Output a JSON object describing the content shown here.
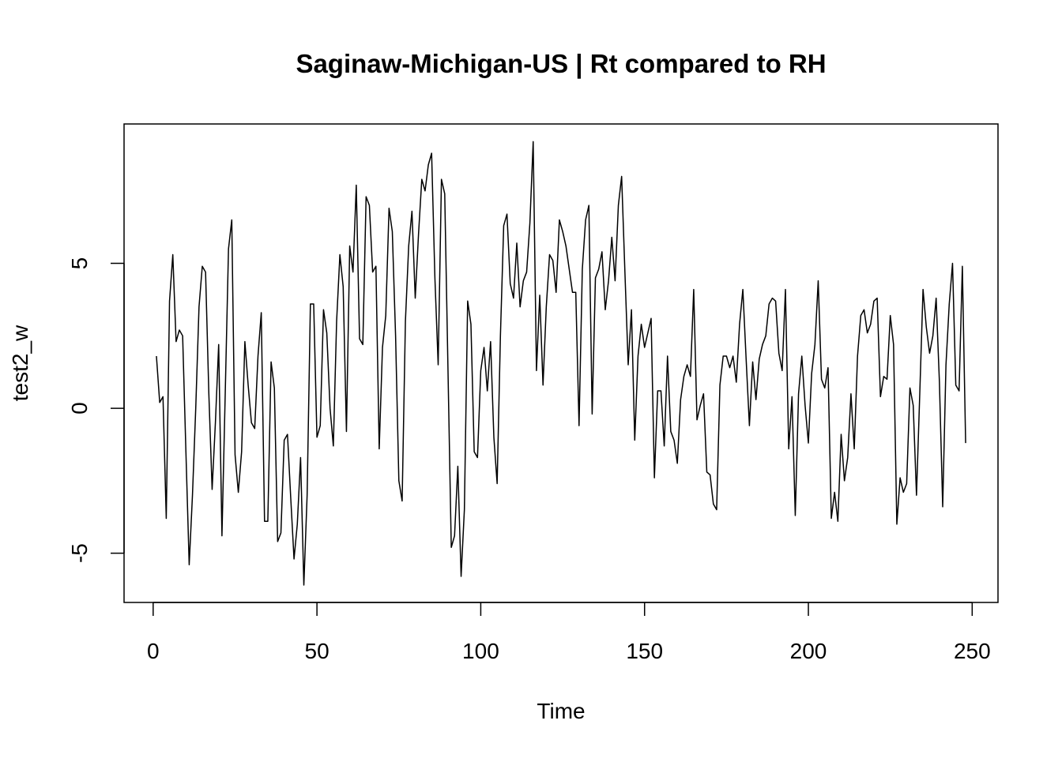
{
  "chart_data": {
    "type": "line",
    "title": "Saginaw-Michigan-US | Rt compared to RH",
    "x_label": "Time",
    "y_label": "test2_w",
    "x": [
      1,
      2,
      3,
      4,
      5,
      6,
      7,
      8,
      9,
      10,
      11,
      12,
      13,
      14,
      15,
      16,
      17,
      18,
      19,
      20,
      21,
      22,
      23,
      24,
      25,
      26,
      27,
      28,
      29,
      30,
      31,
      32,
      33,
      34,
      35,
      36,
      37,
      38,
      39,
      40,
      41,
      42,
      43,
      44,
      45,
      46,
      47,
      48,
      49,
      50,
      51,
      52,
      53,
      54,
      55,
      56,
      57,
      58,
      59,
      60,
      61,
      62,
      63,
      64,
      65,
      66,
      67,
      68,
      69,
      70,
      71,
      72,
      73,
      74,
      75,
      76,
      77,
      78,
      79,
      80,
      81,
      82,
      83,
      84,
      85,
      86,
      87,
      88,
      89,
      90,
      91,
      92,
      93,
      94,
      95,
      96,
      97,
      98,
      99,
      100,
      101,
      102,
      103,
      104,
      105,
      106,
      107,
      108,
      109,
      110,
      111,
      112,
      113,
      114,
      115,
      116,
      117,
      118,
      119,
      120,
      121,
      122,
      123,
      124,
      125,
      126,
      127,
      128,
      129,
      130,
      131,
      132,
      133,
      134,
      135,
      136,
      137,
      138,
      139,
      140,
      141,
      142,
      143,
      144,
      145,
      146,
      147,
      148,
      149,
      150,
      151,
      152,
      153,
      154,
      155,
      156,
      157,
      158,
      159,
      160,
      161,
      162,
      163,
      164,
      165,
      166,
      167,
      168,
      169,
      170,
      171,
      172,
      173,
      174,
      175,
      176,
      177,
      178,
      179,
      180,
      181,
      182,
      183,
      184,
      185,
      186,
      187,
      188,
      189,
      190,
      191,
      192,
      193,
      194,
      195,
      196,
      197,
      198,
      199,
      200,
      201,
      202,
      203,
      204,
      205,
      206,
      207,
      208,
      209,
      210,
      211,
      212,
      213,
      214,
      215,
      216,
      217,
      218,
      219,
      220,
      221,
      222,
      223,
      224,
      225,
      226,
      227,
      228,
      229,
      230,
      231,
      232,
      233,
      234,
      235,
      236,
      237,
      238,
      239,
      240,
      241,
      242,
      243,
      244,
      245,
      246,
      247,
      248
    ],
    "series": [
      {
        "name": "test2_w",
        "color": "#000000",
        "values": [
          1.8,
          0.2,
          0.4,
          -3.8,
          3.7,
          5.3,
          2.3,
          2.7,
          2.5,
          -1.5,
          -5.4,
          -3,
          0,
          3.5,
          4.9,
          4.7,
          0.5,
          -2.8,
          -0.5,
          2.2,
          -4.4,
          0.5,
          5.5,
          6.5,
          -1.6,
          -2.9,
          -1.5,
          2.3,
          0.8,
          -0.5,
          -0.7,
          1.8,
          3.3,
          -3.9,
          -3.9,
          1.6,
          0.7,
          -4.6,
          -4.3,
          -1.1,
          -0.9,
          -3.1,
          -5.2,
          -4,
          -1.7,
          -6.1,
          -3,
          3.6,
          3.6,
          -1,
          -0.6,
          3.4,
          2.6,
          0,
          -1.3,
          3,
          5.3,
          4.2,
          -0.8,
          5.6,
          4.7,
          7.7,
          2.4,
          2.2,
          7.3,
          7,
          4.7,
          4.9,
          -1.4,
          2.1,
          3.2,
          6.9,
          6.1,
          2.5,
          -2.5,
          -3.2,
          3,
          5.6,
          6.8,
          3.8,
          6,
          7.9,
          7.5,
          8.4,
          8.8,
          4.5,
          1.5,
          7.9,
          7.4,
          1.3,
          -4.8,
          -4.4,
          -2,
          -5.8,
          -3.5,
          3.7,
          2.9,
          -1.5,
          -1.7,
          1.3,
          2.1,
          0.6,
          2.3,
          -1,
          -2.6,
          2.5,
          6.3,
          6.7,
          4.3,
          3.8,
          5.7,
          3.5,
          4.4,
          4.7,
          6.4,
          9.2,
          1.3,
          3.9,
          0.8,
          3.5,
          5.3,
          5.1,
          4,
          6.5,
          6.1,
          5.6,
          4.8,
          4,
          4,
          -0.6,
          4.8,
          6.5,
          7,
          -0.2,
          4.5,
          4.8,
          5.4,
          3.4,
          4.4,
          5.9,
          4.4,
          7,
          8,
          4.7,
          1.5,
          3.4,
          -1.1,
          1.8,
          2.9,
          2.1,
          2.6,
          3.1,
          -2.4,
          0.6,
          0.6,
          -1.3,
          1.8,
          -0.8,
          -1.1,
          -1.9,
          0.3,
          1.1,
          1.5,
          1.1,
          4.1,
          -0.4,
          0.1,
          0.5,
          -2.2,
          -2.3,
          -3.3,
          -3.5,
          0.8,
          1.8,
          1.8,
          1.4,
          1.8,
          0.9,
          2.9,
          4.1,
          1.7,
          -0.6,
          1.6,
          0.3,
          1.7,
          2.2,
          2.5,
          3.6,
          3.8,
          3.7,
          1.9,
          1.3,
          4.1,
          -1.4,
          0.4,
          -3.7,
          0.5,
          1.8,
          0.1,
          -1.2,
          1.2,
          2.2,
          4.4,
          1,
          0.7,
          1.4,
          -3.8,
          -2.9,
          -3.9,
          -0.9,
          -2.5,
          -1.7,
          0.5,
          -1.4,
          1.8,
          3.2,
          3.4,
          2.6,
          2.9,
          3.7,
          3.8,
          0.4,
          1.1,
          1,
          3.2,
          2.2,
          -4,
          -2.4,
          -2.9,
          -2.6,
          0.7,
          0.1,
          -3,
          0.5,
          4.1,
          2.8,
          1.9,
          2.5,
          3.8,
          0.9,
          -3.4,
          1.5,
          3.6,
          5,
          0.8,
          0.6,
          4.9,
          -1.2
        ]
      }
    ],
    "xlim": [
      -8.88,
      257.88
    ],
    "xticks": [
      0,
      50,
      100,
      150,
      200,
      250
    ],
    "ylim": [
      -6.7,
      9.81
    ],
    "yticks": [
      -5,
      0,
      5
    ]
  }
}
